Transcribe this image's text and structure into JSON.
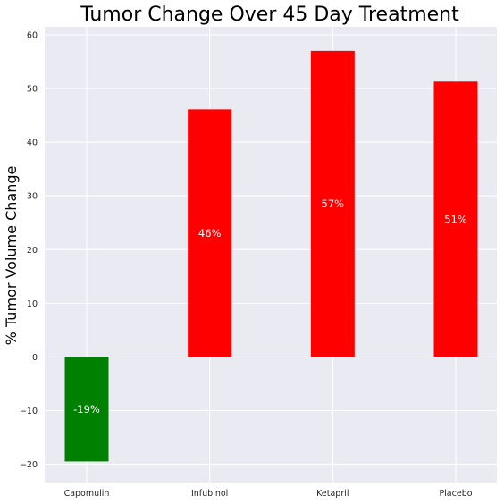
{
  "chart_data": {
    "type": "bar",
    "title": "Tumor Change Over 45 Day Treatment",
    "xlabel": "",
    "ylabel": "% Tumor Volume Change",
    "categories": [
      "Capomulin",
      "Infubinol",
      "Ketapril",
      "Placebo"
    ],
    "values": [
      -19.475303,
      46.123472,
      57.028795,
      51.29796
    ],
    "bar_labels": [
      "-19%",
      "46%",
      "57%",
      "51%"
    ],
    "bar_colors": [
      "#008000",
      "#ff0000",
      "#ff0000",
      "#ff0000"
    ],
    "ylim": [
      -23.4,
      61.5
    ],
    "yticks": [
      -20,
      -10,
      0,
      10,
      20,
      30,
      40,
      50,
      60
    ],
    "ytick_labels": [
      "−20",
      "−10",
      "0",
      "10",
      "20",
      "30",
      "40",
      "50",
      "60"
    ],
    "grid": true,
    "colors": {
      "plot_background": "#eaeaf2",
      "grid": "#ffffff",
      "positive": "#ff0000",
      "negative": "#008000"
    }
  }
}
